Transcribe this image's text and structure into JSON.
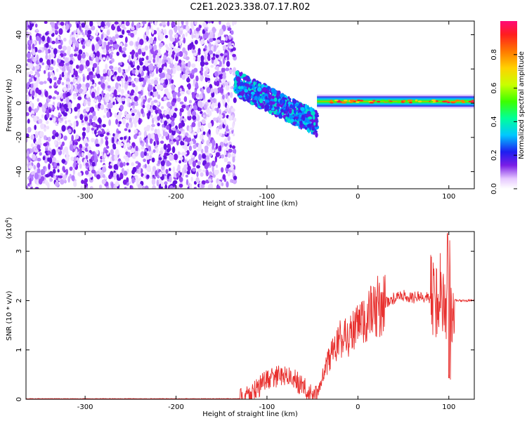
{
  "title": "C2E1.2023.338.07.17.R02",
  "chart_data": [
    {
      "type": "heatmap",
      "xlabel": "Height of straight line (km)",
      "ylabel": "Frequency (Hz)",
      "xlim": [
        -365,
        128
      ],
      "ylim": [
        -50,
        48
      ],
      "xticks": [
        "-300",
        "-200",
        "-100",
        "0",
        "100"
      ],
      "yticks": [
        "-40",
        "-20",
        "0",
        "20",
        "40"
      ],
      "colorbar": {
        "label": "Normalized spectral amplitude",
        "range": [
          0,
          1
        ],
        "ticks": [
          "0.0",
          "0.2",
          "0.4",
          "0.6",
          "0.8"
        ]
      },
      "regions": [
        {
          "x_range": [
            -365,
            -135
          ],
          "description_values": {
            "freq_range": [
              -50,
              48
            ],
            "amplitude": [
              0.0,
              0.15
            ]
          }
        },
        {
          "x_range": [
            -135,
            -45
          ],
          "description_values": {
            "center_freq_start": 12,
            "center_freq_end": -12,
            "amplitude": [
              0.1,
              0.3
            ]
          }
        },
        {
          "x_range": [
            -45,
            128
          ],
          "description_values": {
            "center_freq": 1,
            "amplitude": [
              0.4,
              0.95
            ]
          }
        }
      ]
    },
    {
      "type": "line",
      "xlabel": "Height of straight line (km)",
      "ylabel": "SNR (10 * v/v)",
      "scale_label": "(x10",
      "scale_exp": "4",
      "scale_close": ")",
      "xlim": [
        -365,
        128
      ],
      "ylim": [
        0,
        3.4
      ],
      "xticks": [
        "-300",
        "-200",
        "-100",
        "0",
        "100"
      ],
      "yticks": [
        "0",
        "1",
        "2",
        "3"
      ],
      "color": "#e8312f",
      "series": [
        {
          "x": [
            -365,
            -130,
            -115,
            -100,
            -90,
            -80,
            -70,
            -60,
            -50,
            -45,
            -38,
            -30,
            -20,
            -10,
            0,
            10,
            20,
            30,
            40,
            50,
            60,
            70,
            80,
            88,
            92,
            96,
            100,
            102,
            105,
            110,
            128
          ],
          "y": [
            0.01,
            0.01,
            0.15,
            0.4,
            0.45,
            0.5,
            0.4,
            0.25,
            0.05,
            0.08,
            0.5,
            0.9,
            1.2,
            1.3,
            1.45,
            1.65,
            1.85,
            1.95,
            2.05,
            2.1,
            2.05,
            2.1,
            2.05,
            2.1,
            2.2,
            1.9,
            2.2,
            2.05,
            2.02,
            2.0,
            2.0
          ]
        }
      ]
    }
  ]
}
